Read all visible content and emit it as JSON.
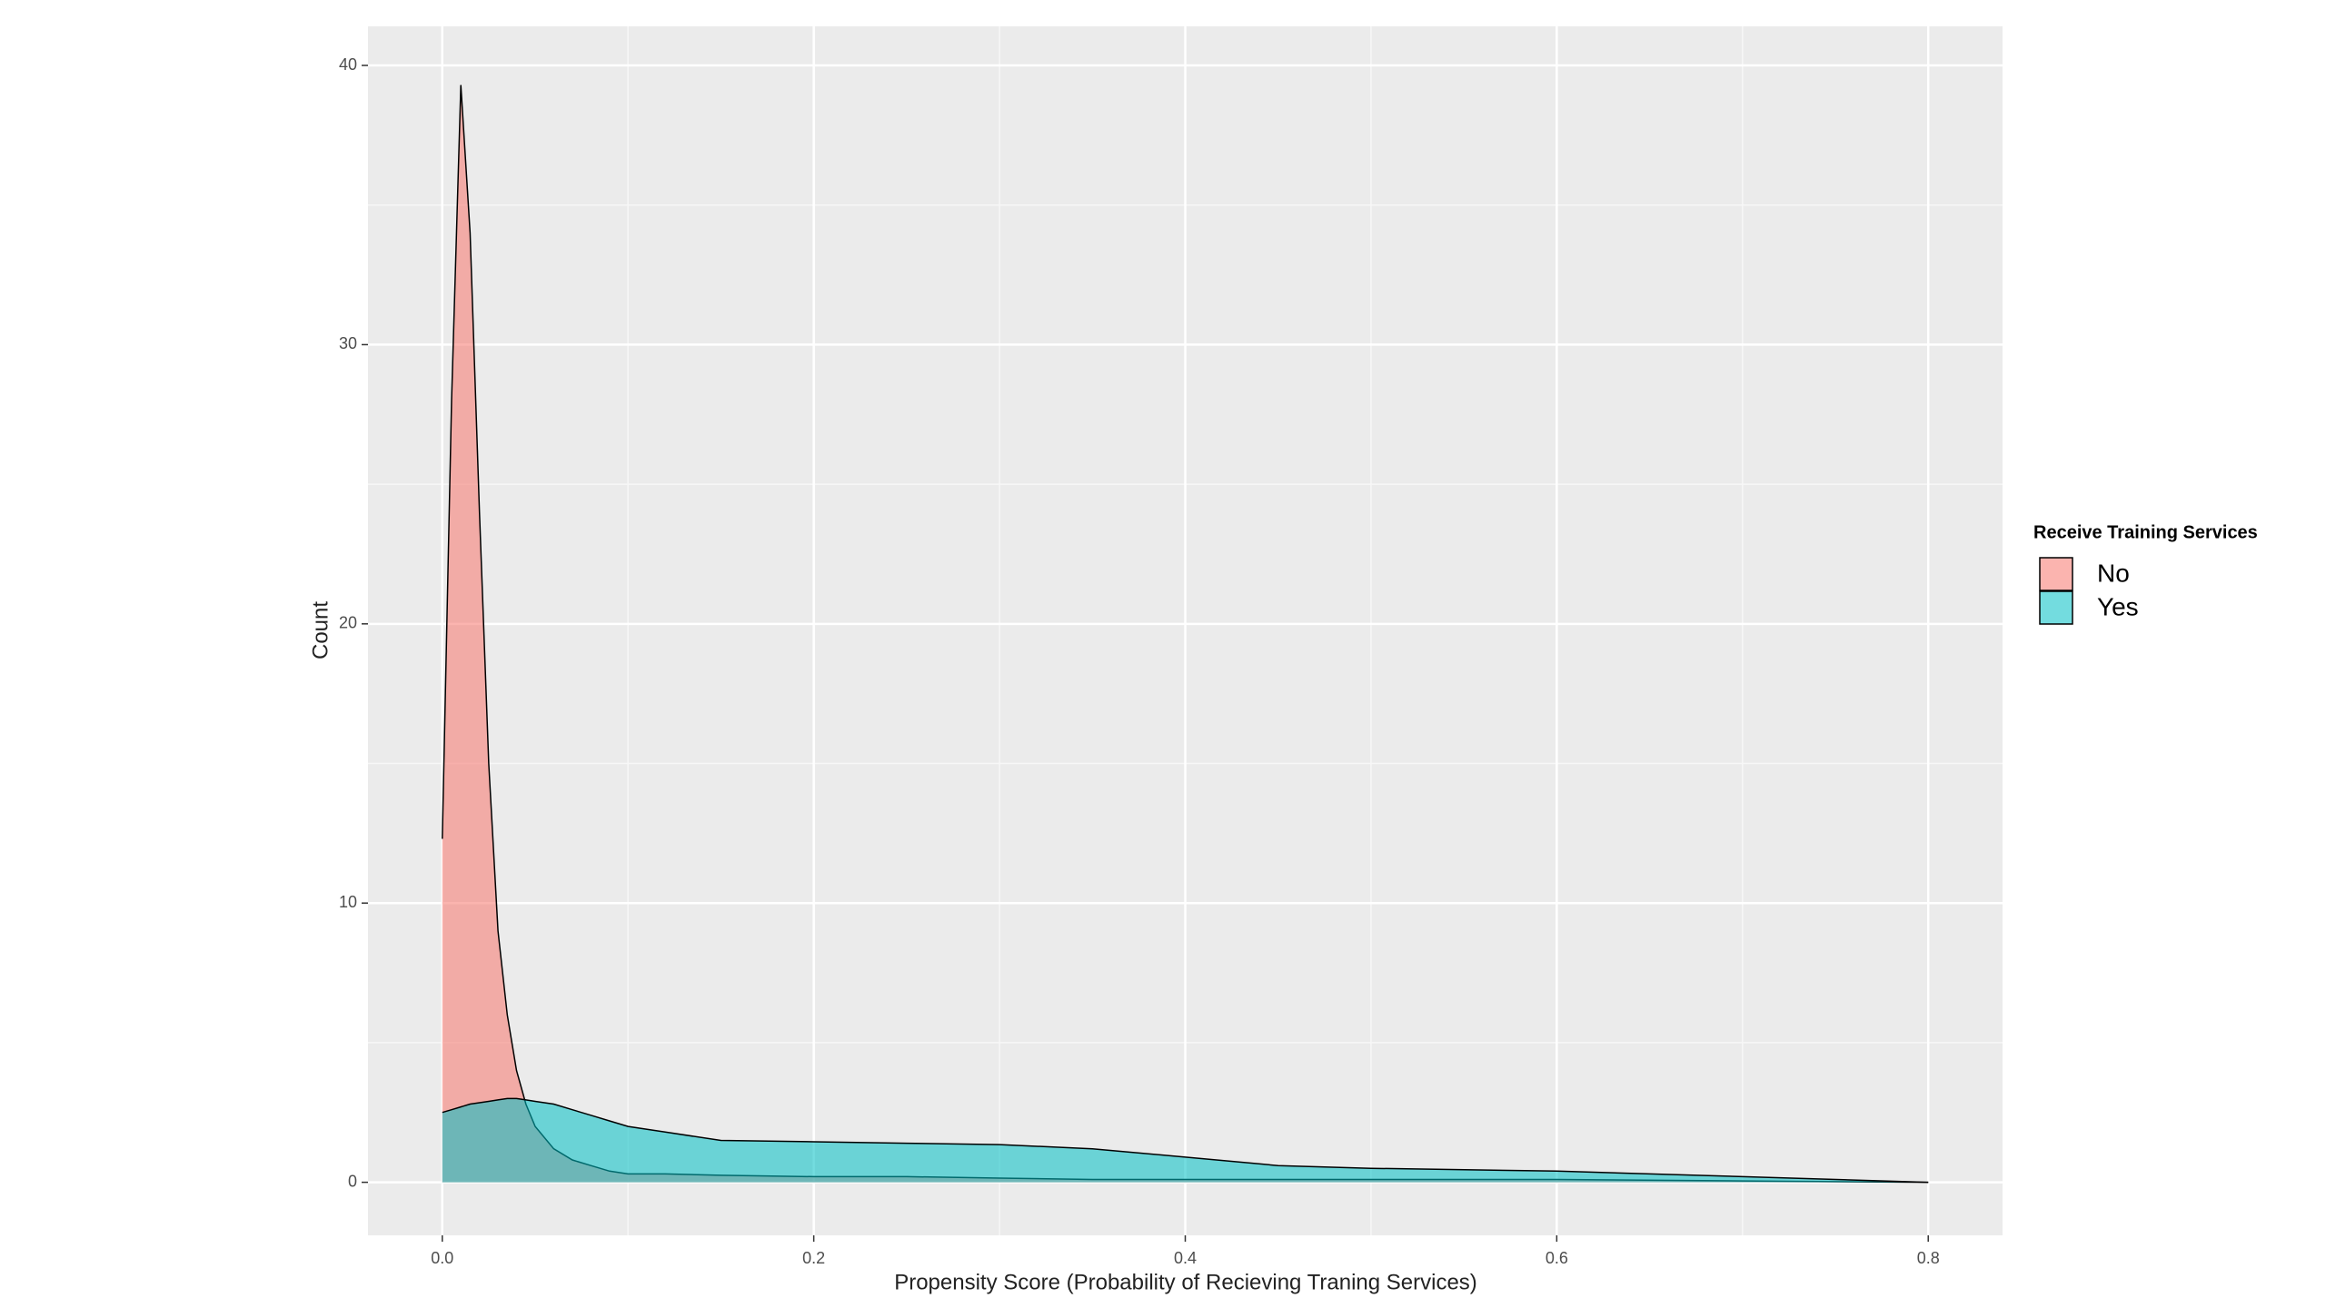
{
  "chart_data": {
    "type": "density",
    "xlabel": "Propensity Score (Probability of Recieving Traning Services)",
    "ylabel": "Count",
    "legend_title": "Receive Training Services",
    "legend": "right",
    "grid": true,
    "x": [
      0,
      0.005,
      0.01,
      0.015,
      0.02,
      0.025,
      0.03,
      0.035,
      0.04,
      0.045,
      0.05,
      0.06,
      0.07,
      0.08,
      0.09,
      0.1,
      0.12,
      0.15,
      0.2,
      0.25,
      0.3,
      0.35,
      0.4,
      0.45,
      0.5,
      0.6,
      0.7,
      0.8
    ],
    "series": [
      {
        "name": "No",
        "color": "#F8766D",
        "values": [
          12.3,
          28,
          39.3,
          34,
          24,
          15,
          9,
          6,
          4,
          2.8,
          2,
          1.2,
          0.8,
          0.6,
          0.4,
          0.3,
          0.3,
          0.25,
          0.2,
          0.2,
          0.15,
          0.1,
          0.1,
          0.1,
          0.1,
          0.1,
          0.05,
          0
        ]
      },
      {
        "name": "Yes",
        "color": "#00BFC4",
        "values": [
          2.5,
          2.6,
          2.7,
          2.8,
          2.85,
          2.9,
          2.95,
          3.0,
          3.0,
          2.95,
          2.9,
          2.8,
          2.6,
          2.4,
          2.2,
          2.0,
          1.8,
          1.5,
          1.45,
          1.4,
          1.35,
          1.2,
          0.9,
          0.6,
          0.5,
          0.4,
          0.2,
          0
        ]
      }
    ],
    "xlim": [
      -0.04,
      0.84
    ],
    "ylim": [
      -1.9,
      41.4
    ],
    "xticks": [
      {
        "value": 0,
        "label": "0.0"
      },
      0.2,
      0.4,
      0.6,
      0.8
    ],
    "yticks": [
      0,
      10,
      20,
      30,
      40
    ]
  }
}
